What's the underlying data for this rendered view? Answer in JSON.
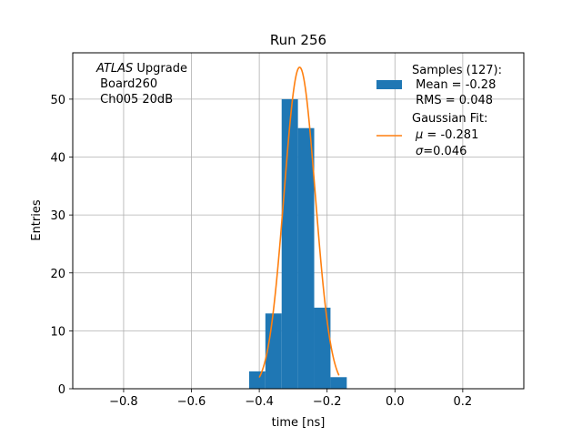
{
  "chart_data": {
    "type": "bar",
    "title": "Run 256",
    "xlabel": "time [ns]",
    "ylabel": "Entries",
    "xlim": [
      -0.95,
      0.38
    ],
    "ylim": [
      0,
      58
    ],
    "grid": true,
    "x_ticks": [
      {
        "value": -0.8,
        "label": "−0.8"
      },
      {
        "value": -0.6,
        "label": "−0.6"
      },
      {
        "value": -0.4,
        "label": "−0.4"
      },
      {
        "value": -0.2,
        "label": "−0.2"
      },
      {
        "value": 0.0,
        "label": "0.0"
      },
      {
        "value": 0.2,
        "label": "0.2"
      }
    ],
    "y_ticks": [
      {
        "value": 0,
        "label": "0"
      },
      {
        "value": 10,
        "label": "10"
      },
      {
        "value": 20,
        "label": "20"
      },
      {
        "value": 30,
        "label": "30"
      },
      {
        "value": 40,
        "label": "40"
      },
      {
        "value": 50,
        "label": "50"
      }
    ],
    "histogram": {
      "color": "#1f77b4",
      "bin_edges": [
        -0.43,
        -0.382,
        -0.334,
        -0.286,
        -0.238,
        -0.19,
        -0.142
      ],
      "counts": [
        3,
        13,
        50,
        45,
        14,
        2
      ]
    },
    "fit": {
      "color": "#ff7f0e",
      "mu": -0.281,
      "sigma": 0.046,
      "amplitude": 55.5,
      "x_range": [
        -0.4,
        -0.165
      ]
    },
    "annotation": {
      "italic": "ATLAS",
      "rest": " Upgrade",
      "line2": " Board260",
      "line3": " Ch005 20dB"
    },
    "legend": {
      "position": "upper right",
      "samples_line1": "Samples (127):",
      "samples_line2": " Mean = -0.28",
      "samples_line3": " RMS = 0.048",
      "fit_line1": "Gaussian Fit:",
      "fit_mu_symbol": "μ",
      "fit_mu_rest": " = -0.281",
      "fit_sigma_symbol": "σ",
      "fit_sigma_rest": "=0.046"
    }
  }
}
